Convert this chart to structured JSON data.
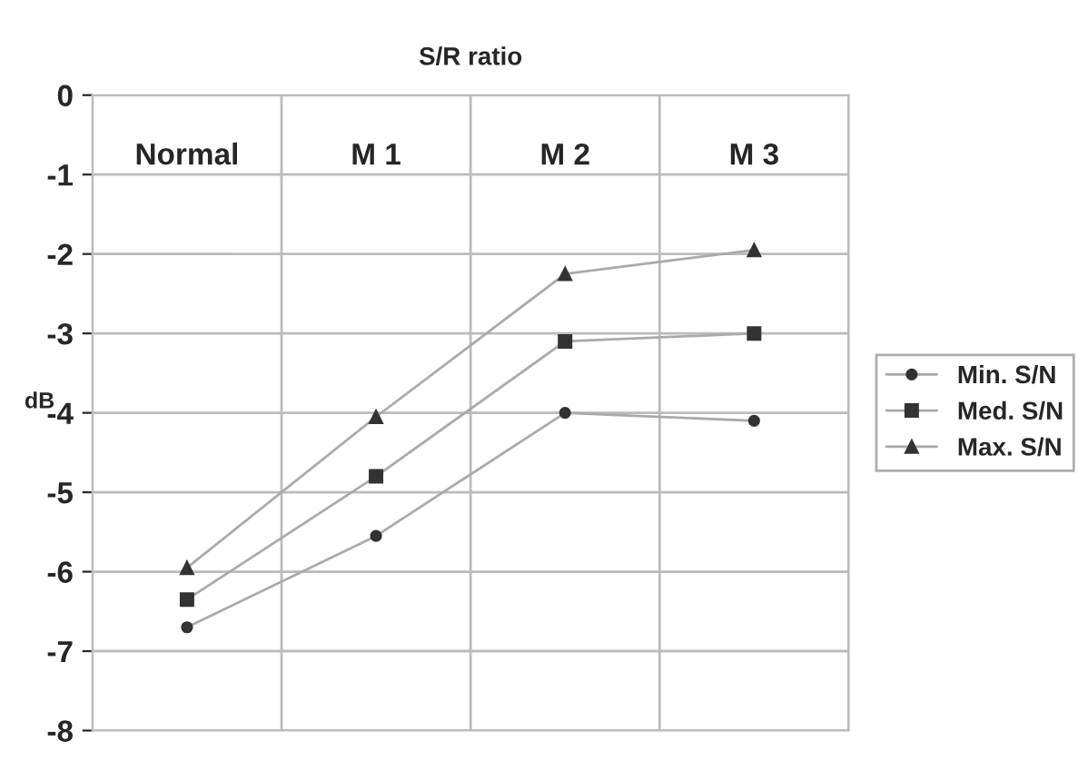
{
  "chart_data": {
    "type": "line",
    "title": "S/R ratio",
    "ylabel": "dB",
    "categories": [
      "Normal",
      "M 1",
      "M 2",
      "M 3"
    ],
    "series": [
      {
        "name": "Min. S/N",
        "color": "#333333",
        "marker": "circle",
        "values": [
          -6.7,
          -5.55,
          -4.0,
          -4.1
        ]
      },
      {
        "name": "Med. S/N",
        "color": "#333333",
        "marker": "square",
        "values": [
          -6.35,
          -4.8,
          -3.1,
          -3.0
        ]
      },
      {
        "name": "Max. S/N",
        "color": "#333333",
        "marker": "triangle",
        "values": [
          -5.95,
          -4.05,
          -2.25,
          -1.95
        ]
      }
    ],
    "ylim": [
      -8,
      0
    ],
    "yticks": [
      -8,
      -7,
      -6,
      -5,
      -4,
      -3,
      -2,
      -1,
      0
    ],
    "grid": true,
    "legend": "right",
    "line_style": "solid"
  }
}
